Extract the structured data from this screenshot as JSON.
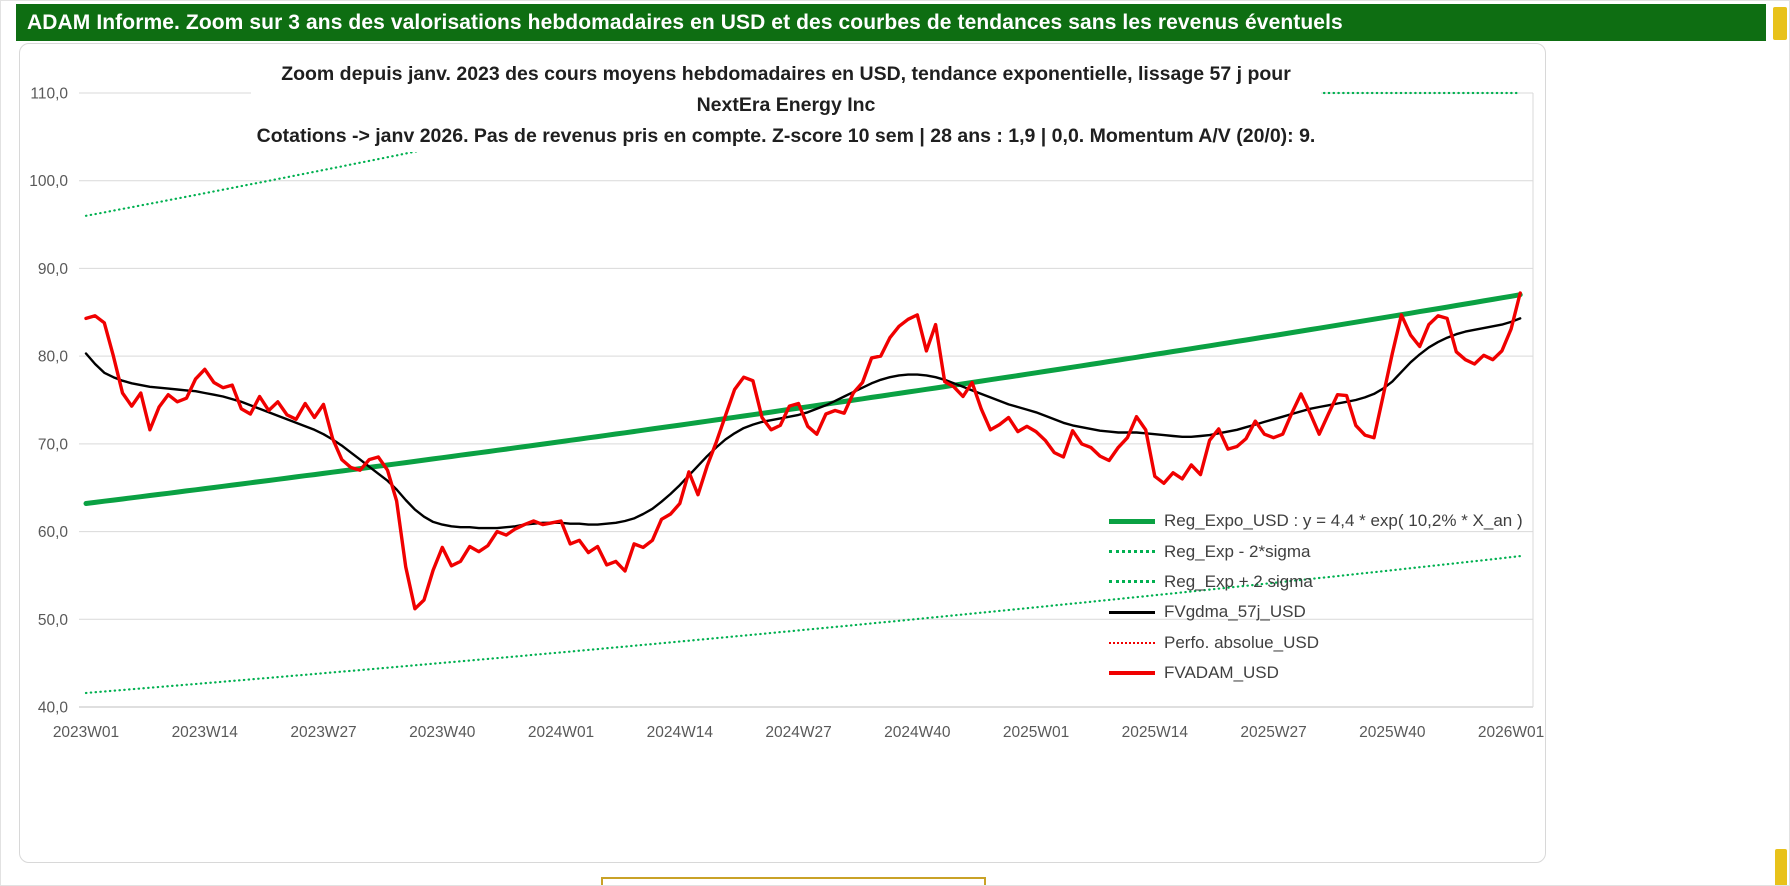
{
  "header": {
    "title": "ADAM Informe. Zoom sur 3 ans des valorisations hebdomadaires en USD et des courbes de tendances sans les revenus éventuels"
  },
  "colors": {
    "header_bg": "#0e6e12",
    "trend_green": "#0aa143",
    "band_green": "#00b050",
    "red": "#f00000",
    "black": "#000000",
    "accent_yellow": "#e8c21a",
    "gridline": "#d9d9d9",
    "axis_text": "#595959"
  },
  "chart_data": {
    "type": "line",
    "title_line1": "Zoom depuis janv. 2023 des cours moyens hebdomadaires en USD, tendance exponentielle, lissage 57 j pour NextEra Energy Inc",
    "title_line2": "Cotations -> janv 2026. Pas de revenus pris en compte. Z-score 10 sem | 28 ans : 1,9 | 0,0. Momentum A/V (20/0): 9.",
    "ylim": [
      40,
      110
    ],
    "grid": "horizontal",
    "legend_position": "right-middle",
    "n_points": 158,
    "y_ticks": [
      40,
      50,
      60,
      70,
      80,
      90,
      100,
      110
    ],
    "y_tick_labels": [
      "40,0",
      "50,0",
      "60,0",
      "70,0",
      "80,0",
      "90,0",
      "100,0",
      "110,0"
    ],
    "x_tick_indices": [
      0,
      13,
      26,
      39,
      52,
      65,
      78,
      91,
      104,
      117,
      130,
      143,
      156
    ],
    "x_tick_labels": [
      "2023W01",
      "2023W14",
      "2023W27",
      "2023W40",
      "2024W01",
      "2024W14",
      "2024W27",
      "2024W40",
      "2025W01",
      "2025W14",
      "2025W27",
      "2025W40",
      "2026W01"
    ],
    "series": [
      {
        "name": "Reg_Exp - 2*sigma",
        "type": "exp",
        "start": 41.6,
        "end": 57.2,
        "color": "#00b050",
        "style": "dotted",
        "width": 2.2
      },
      {
        "name": "Reg_Exp + 2 sigma",
        "type": "exp",
        "start": 96.0,
        "end": 132.2,
        "color": "#00b050",
        "style": "dotted",
        "width": 2.2,
        "cap_value": 110,
        "cap_from": 135,
        "cap_to": 157
      },
      {
        "name": "Reg_Expo_USD",
        "type": "exp",
        "start": 63.2,
        "end": 87.0,
        "color": "#0aa143",
        "style": "solid",
        "width": 5
      },
      {
        "name": "Perfo. absolue_USD",
        "values_ref": "FVADAM_USD",
        "color": "#f00000",
        "style": "dotted",
        "width": 1.6
      },
      {
        "name": "FVgdma_57j_USD",
        "color": "#000000",
        "style": "solid",
        "width": 2.4,
        "values": [
          80.3,
          79.1,
          78.1,
          77.6,
          77.2,
          76.9,
          76.7,
          76.5,
          76.4,
          76.3,
          76.2,
          76.1,
          76.0,
          75.8,
          75.6,
          75.4,
          75.1,
          74.8,
          74.4,
          74.0,
          73.6,
          73.2,
          72.8,
          72.4,
          72.0,
          71.6,
          71.1,
          70.5,
          69.8,
          69.0,
          68.2,
          67.4,
          66.6,
          65.8,
          64.8,
          63.6,
          62.5,
          61.7,
          61.1,
          60.8,
          60.6,
          60.5,
          60.5,
          60.4,
          60.4,
          60.4,
          60.5,
          60.6,
          60.8,
          60.9,
          61.0,
          61.0,
          61.0,
          60.9,
          60.9,
          60.8,
          60.8,
          60.9,
          61.0,
          61.2,
          61.5,
          62.0,
          62.6,
          63.4,
          64.3,
          65.3,
          66.4,
          67.5,
          68.6,
          69.6,
          70.5,
          71.2,
          71.8,
          72.2,
          72.5,
          72.7,
          72.9,
          73.1,
          73.3,
          73.6,
          74.0,
          74.4,
          74.9,
          75.4,
          75.9,
          76.4,
          76.9,
          77.3,
          77.6,
          77.8,
          77.9,
          77.9,
          77.8,
          77.6,
          77.3,
          76.9,
          76.5,
          76.1,
          75.7,
          75.3,
          74.9,
          74.5,
          74.2,
          73.9,
          73.6,
          73.2,
          72.8,
          72.4,
          72.1,
          71.9,
          71.7,
          71.5,
          71.4,
          71.3,
          71.3,
          71.3,
          71.2,
          71.1,
          71.0,
          70.9,
          70.8,
          70.8,
          70.9,
          71.0,
          71.2,
          71.4,
          71.6,
          71.9,
          72.2,
          72.5,
          72.8,
          73.1,
          73.4,
          73.7,
          74.0,
          74.2,
          74.4,
          74.6,
          74.8,
          75.0,
          75.3,
          75.7,
          76.3,
          77.1,
          78.2,
          79.3,
          80.2,
          81.0,
          81.6,
          82.1,
          82.5,
          82.8,
          83.0,
          83.2,
          83.4,
          83.6,
          83.9,
          84.3
        ]
      },
      {
        "name": "FVADAM_USD",
        "color": "#f00000",
        "style": "solid",
        "width": 3.4,
        "values": [
          84.3,
          84.6,
          83.8,
          80.0,
          75.8,
          74.3,
          75.8,
          71.6,
          74.2,
          75.6,
          74.8,
          75.2,
          77.4,
          78.5,
          77.0,
          76.4,
          76.7,
          74.0,
          73.4,
          75.4,
          73.8,
          74.8,
          73.3,
          72.8,
          74.6,
          73.0,
          74.5,
          70.6,
          68.2,
          67.3,
          67.0,
          68.2,
          68.5,
          67.0,
          63.5,
          56.0,
          51.2,
          52.2,
          55.6,
          58.2,
          56.1,
          56.6,
          58.3,
          57.7,
          58.4,
          60.0,
          59.6,
          60.3,
          60.8,
          61.2,
          60.8,
          61.0,
          61.2,
          58.6,
          59.0,
          57.6,
          58.3,
          56.2,
          56.6,
          55.5,
          58.6,
          58.2,
          59.0,
          61.4,
          62.0,
          63.2,
          66.8,
          64.2,
          67.5,
          70.2,
          73.2,
          76.2,
          77.6,
          77.2,
          73.0,
          71.6,
          72.1,
          74.3,
          74.6,
          72.0,
          71.1,
          73.4,
          73.8,
          73.5,
          75.8,
          77.0,
          79.8,
          80.0,
          82.1,
          83.4,
          84.2,
          84.7,
          80.6,
          83.6,
          77.1,
          76.5,
          75.4,
          77.0,
          74.0,
          71.6,
          72.2,
          73.0,
          71.4,
          72.0,
          71.4,
          70.4,
          69.0,
          68.5,
          71.5,
          70.0,
          69.6,
          68.6,
          68.1,
          69.6,
          70.7,
          73.1,
          71.6,
          66.3,
          65.5,
          66.7,
          66.0,
          67.6,
          66.5,
          70.4,
          71.7,
          69.4,
          69.7,
          70.6,
          72.6,
          71.1,
          70.7,
          71.1,
          73.5,
          75.7,
          73.5,
          71.1,
          73.4,
          75.6,
          75.5,
          72.1,
          71.0,
          70.7,
          75.5,
          80.3,
          84.7,
          82.4,
          81.1,
          83.6,
          84.6,
          84.3,
          80.5,
          79.6,
          79.1,
          80.1,
          79.6,
          80.6,
          83.1,
          87.2
        ]
      }
    ]
  },
  "legend": {
    "items": [
      {
        "label": "Reg_Expo_USD : y = 4,4 * exp( 10,2% * X_an )"
      },
      {
        "label": "Reg_Exp - 2*sigma"
      },
      {
        "label": "Reg_Exp + 2 sigma"
      },
      {
        "label": "FVgdma_57j_USD"
      },
      {
        "label": "Perfo. absolue_USD"
      },
      {
        "label": "FVADAM_USD"
      }
    ]
  }
}
